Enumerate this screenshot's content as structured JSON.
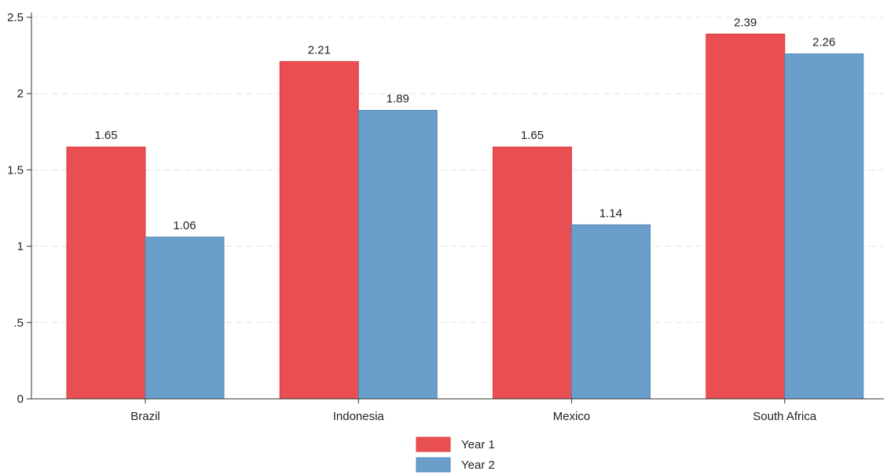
{
  "chart_data": {
    "type": "bar",
    "title": "",
    "xlabel": "",
    "ylabel": "",
    "categories": [
      "Brazil",
      "Indonesia",
      "Mexico",
      "South Africa"
    ],
    "series": [
      {
        "name": "Year 1",
        "values": [
          1.65,
          2.21,
          1.65,
          2.39
        ],
        "color": "#e94f52"
      },
      {
        "name": "Year 2",
        "values": [
          1.06,
          1.89,
          1.14,
          2.26
        ],
        "color": "#6a9ecb"
      }
    ],
    "data_labels": [
      [
        "1.65",
        "2.21",
        "1.65",
        "2.39"
      ],
      [
        "1.06",
        "1.89",
        "1.14",
        "2.26"
      ]
    ],
    "ylim": [
      0,
      2.5
    ],
    "yticks": [
      {
        "value": 0,
        "label": "0"
      },
      {
        "value": 0.5,
        "label": ".5"
      },
      {
        "value": 1,
        "label": "1"
      },
      {
        "value": 1.5,
        "label": "1.5"
      },
      {
        "value": 2,
        "label": "2"
      },
      {
        "value": 2.5,
        "label": "2.5"
      }
    ],
    "grid": true,
    "legend_position": "bottom-center"
  }
}
